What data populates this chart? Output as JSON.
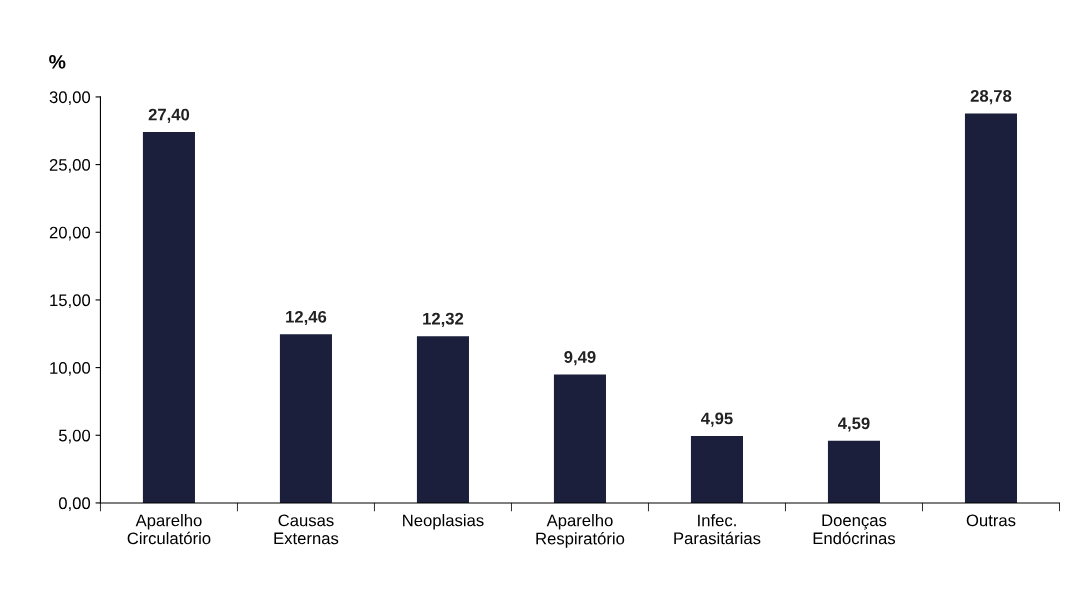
{
  "chart_data": {
    "type": "bar",
    "ylabel": "%",
    "categories": [
      "Aparelho\nCirculatório",
      "Causas\nExternas",
      "Neoplasias",
      "Aparelho\nRespiratório",
      "Infec.\nParasitárias",
      "Doenças\nEndócrinas",
      "Outras"
    ],
    "values": [
      27.4,
      12.46,
      12.32,
      9.49,
      4.95,
      4.59,
      28.78
    ],
    "value_labels": [
      "27,40",
      "12,46",
      "12,32",
      "9,49",
      "4,95",
      "4,59",
      "28,78"
    ],
    "color": "#1b1f3b",
    "ylim": [
      0,
      30
    ],
    "yticks": [
      {
        "value": 0,
        "label": "0,00"
      },
      {
        "value": 5,
        "label": "5,00"
      },
      {
        "value": 10,
        "label": "10,00"
      },
      {
        "value": 15,
        "label": "15,00"
      },
      {
        "value": 20,
        "label": "20,00"
      },
      {
        "value": 25,
        "label": "25,00"
      },
      {
        "value": 30,
        "label": "30,00"
      }
    ],
    "grid": false
  }
}
